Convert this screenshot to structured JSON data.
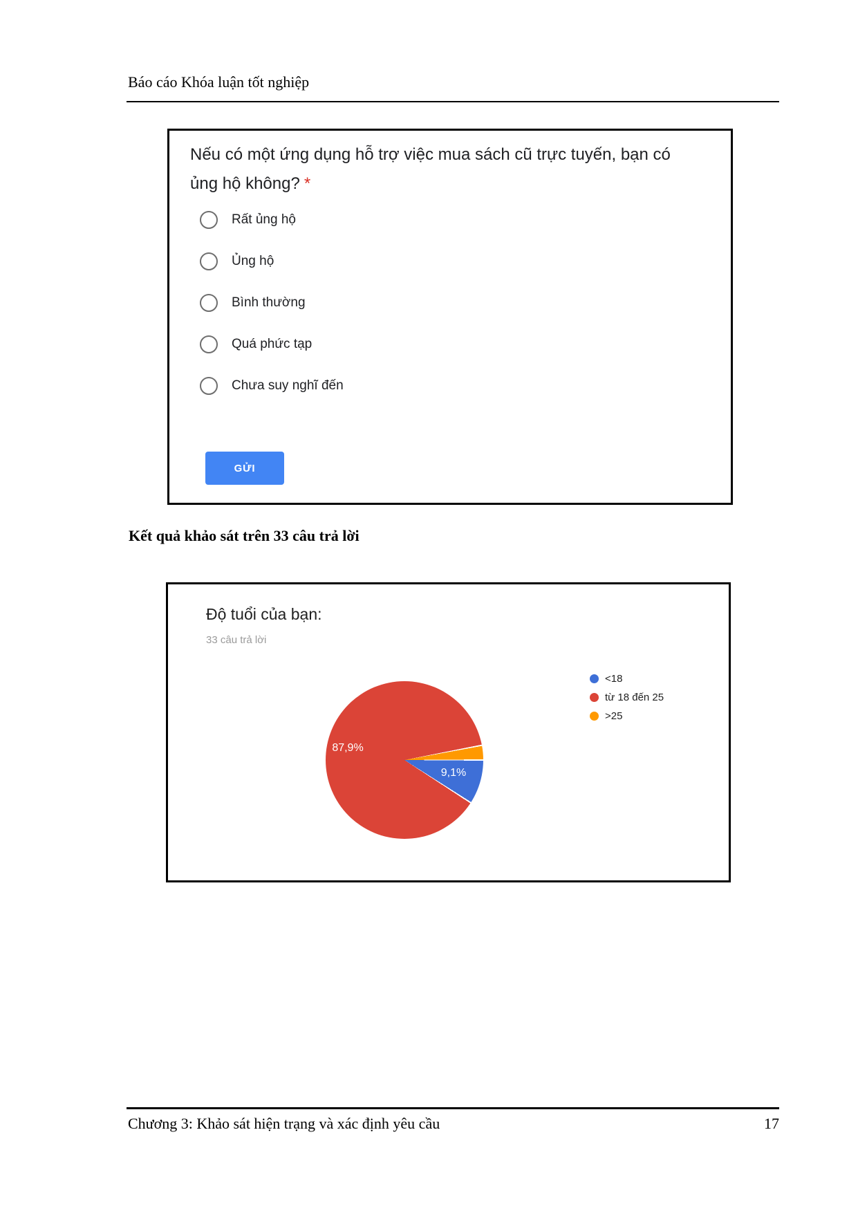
{
  "page": {
    "header": "Báo cáo Khóa luận tốt nghiệp",
    "section_heading": "Kết quả khảo sát trên 33 câu trả lời",
    "footer": "Chương 3: Khảo sát hiện trạng và xác định yêu cầu",
    "page_number": "17"
  },
  "form": {
    "question_line1": "Nếu có một ứng dụng hỗ trợ việc mua sách cũ trực tuyến, bạn có",
    "question_line2": "ủng hộ không?",
    "required_mark": "*",
    "options": [
      "Rất ủng hộ",
      "Ủng hộ",
      "Bình thường",
      "Quá phức tạp",
      "Chưa suy nghĩ đến"
    ],
    "submit_label": "GỬI",
    "submit_color": "#4285f4"
  },
  "chart_data": {
    "type": "pie",
    "title": "Độ tuổi của bạn:",
    "subtitle": "33 câu trả lời",
    "responses_total": 33,
    "legend_position": "right",
    "start_angle": "3-o'clock, clockwise",
    "slices": [
      {
        "label": "<18",
        "value_pct": 9.1,
        "display": "9,1%",
        "color": "#3e6fd7"
      },
      {
        "label": "từ 18 đến 25",
        "value_pct": 87.9,
        "display": "87,9%",
        "color": "#db4437"
      },
      {
        "label": ">25",
        "value_pct": 3.0,
        "display": "",
        "color": "#ff9900"
      }
    ]
  }
}
